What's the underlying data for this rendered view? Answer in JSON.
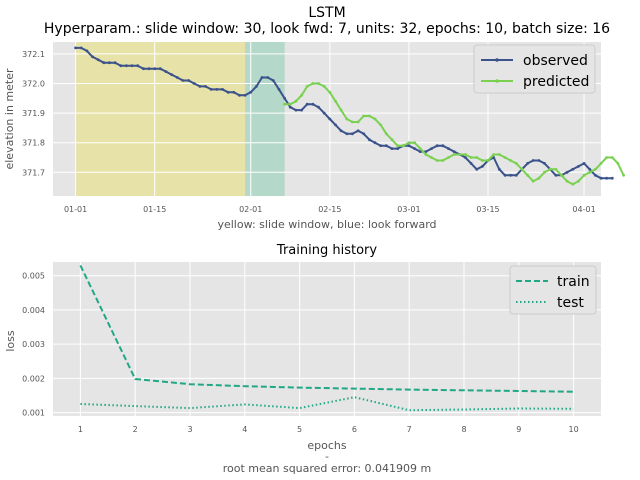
{
  "figure": {
    "title": "LSTM",
    "subtitle": "Hyperparam.: slide window: 30, look fwd: 7, units: 32, epochs: 10, batch size: 16",
    "footer_dash": "-",
    "footer_rmse": "root mean squared error: 0.041909 m"
  },
  "colors": {
    "plot_bg": "#e5e5e5",
    "grid": "#ffffff",
    "observed": "#3b528b",
    "predicted": "#7ad151",
    "slide_window_span": "#e6e2a8",
    "look_forward_span": "#b4d8c9",
    "train": "#21a784",
    "test": "#21a784",
    "text": "#555555"
  },
  "chart_data": [
    {
      "type": "line",
      "title": "",
      "xlabel": "yellow: slide window, blue: look forward",
      "ylabel": "elevation in meter",
      "x_type": "date",
      "xlim": [
        "2018-12-28",
        "2019-04-04"
      ],
      "ylim": [
        371.62,
        372.14
      ],
      "xticks": [
        "01-01",
        "01-15",
        "02-01",
        "02-15",
        "03-01",
        "03-15",
        "04-01"
      ],
      "yticks": [
        "371.7",
        "371.8",
        "371.9",
        "372.0",
        "372.1"
      ],
      "grid": true,
      "legend_position": "top-right",
      "spans": [
        {
          "from": "2019-01-01",
          "to": "2019-01-31",
          "meaning": "slide window"
        },
        {
          "from": "2019-01-31",
          "to": "2019-02-07",
          "meaning": "look forward"
        }
      ],
      "series": [
        {
          "name": "observed",
          "start_date": "2019-01-01",
          "values": [
            372.12,
            372.12,
            372.11,
            372.09,
            372.08,
            372.07,
            372.07,
            372.07,
            372.06,
            372.06,
            372.06,
            372.06,
            372.05,
            372.05,
            372.05,
            372.05,
            372.04,
            372.03,
            372.02,
            372.01,
            372.01,
            372.0,
            371.99,
            371.99,
            371.98,
            371.98,
            371.98,
            371.97,
            371.97,
            371.96,
            371.96,
            371.97,
            371.99,
            372.02,
            372.02,
            372.01,
            371.98,
            371.95,
            371.92,
            371.91,
            371.91,
            371.93,
            371.93,
            371.92,
            371.9,
            371.88,
            371.86,
            371.84,
            371.83,
            371.83,
            371.84,
            371.83,
            371.81,
            371.8,
            371.79,
            371.79,
            371.78,
            371.78,
            371.79,
            371.79,
            371.78,
            371.77,
            371.77,
            371.78,
            371.79,
            371.79,
            371.78,
            371.77,
            371.76,
            371.75,
            371.73,
            371.71,
            371.72,
            371.74,
            371.75,
            371.71,
            371.69,
            371.69,
            371.69,
            371.71,
            371.73,
            371.74,
            371.74,
            371.73,
            371.71,
            371.69,
            371.69,
            371.7,
            371.71,
            371.72,
            371.73,
            371.71,
            371.69,
            371.68,
            371.68,
            371.68
          ]
        },
        {
          "name": "predicted",
          "start_date": "2019-02-07",
          "values": [
            371.93,
            371.93,
            371.94,
            371.96,
            371.99,
            372.0,
            372.0,
            371.99,
            371.97,
            371.94,
            371.91,
            371.88,
            371.87,
            371.87,
            371.89,
            371.89,
            371.88,
            371.86,
            371.83,
            371.81,
            371.79,
            371.79,
            371.8,
            371.8,
            371.78,
            371.76,
            371.75,
            371.74,
            371.74,
            371.75,
            371.76,
            371.76,
            371.76,
            371.75,
            371.75,
            371.74,
            371.74,
            371.76,
            371.76,
            371.75,
            371.74,
            371.73,
            371.71,
            371.69,
            371.67,
            371.68,
            371.7,
            371.71,
            371.71,
            371.69,
            371.67,
            371.66,
            371.67,
            371.69,
            371.7,
            371.71,
            371.73,
            371.75,
            371.75,
            371.73,
            371.69
          ]
        }
      ]
    },
    {
      "type": "line",
      "title": "Training history",
      "xlabel": "epochs",
      "ylabel": "loss",
      "xlim": [
        0.5,
        10.5
      ],
      "ylim": [
        0.0009,
        0.0054
      ],
      "xticks": [
        "1",
        "2",
        "3",
        "4",
        "5",
        "6",
        "7",
        "8",
        "9",
        "10"
      ],
      "yticks": [
        "0.001",
        "0.002",
        "0.003",
        "0.004",
        "0.005"
      ],
      "grid": true,
      "legend_position": "top-right",
      "x": [
        1,
        2,
        3,
        4,
        5,
        6,
        7,
        8,
        9,
        10
      ],
      "series": [
        {
          "name": "train",
          "style": "dashed",
          "values": [
            0.0053,
            0.00198,
            0.00183,
            0.00177,
            0.00173,
            0.0017,
            0.00167,
            0.00165,
            0.00163,
            0.00161
          ]
        },
        {
          "name": "test",
          "style": "dotted",
          "values": [
            0.00125,
            0.00119,
            0.00113,
            0.00124,
            0.00113,
            0.00145,
            0.00107,
            0.00109,
            0.00112,
            0.00111
          ]
        }
      ]
    }
  ]
}
